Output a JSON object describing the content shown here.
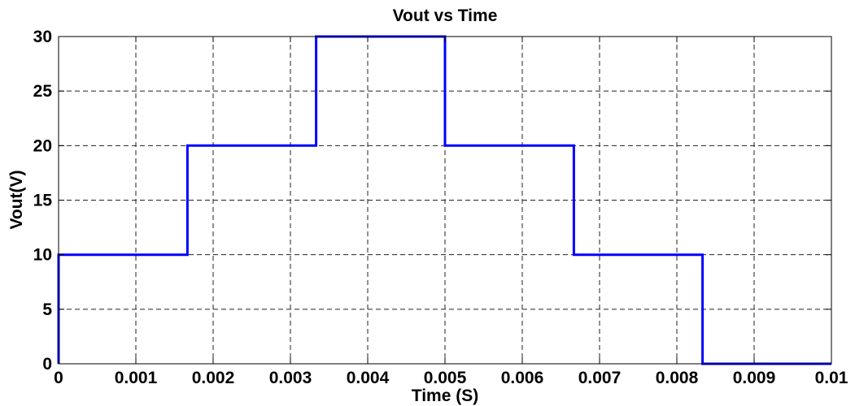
{
  "chart_data": {
    "type": "line",
    "title": "Vout vs Time",
    "xlabel": "Time (S)",
    "ylabel": "Vout(V)",
    "xlim": [
      0,
      0.01
    ],
    "ylim": [
      0,
      30
    ],
    "grid": true,
    "x_ticks": [
      0,
      0.001,
      0.002,
      0.003,
      0.004,
      0.005,
      0.006,
      0.007,
      0.008,
      0.009,
      0.01
    ],
    "x_tick_labels": [
      "0",
      "0.001",
      "0.002",
      "0.003",
      "0.004",
      "0.005",
      "0.006",
      "0.007",
      "0.008",
      "0.009",
      "0.01"
    ],
    "y_ticks": [
      0,
      5,
      10,
      15,
      20,
      25,
      30
    ],
    "y_tick_labels": [
      "0",
      "5",
      "10",
      "15",
      "20",
      "25",
      "30"
    ],
    "series": [
      {
        "color": "#0000ff",
        "x": [
          0,
          0,
          0.001667,
          0.001667,
          0.003333,
          0.003333,
          0.005,
          0.005,
          0.006667,
          0.006667,
          0.008333,
          0.008333,
          0.01
        ],
        "y": [
          0,
          10,
          10,
          20,
          20,
          30,
          30,
          20,
          20,
          10,
          10,
          0,
          0
        ]
      }
    ]
  }
}
